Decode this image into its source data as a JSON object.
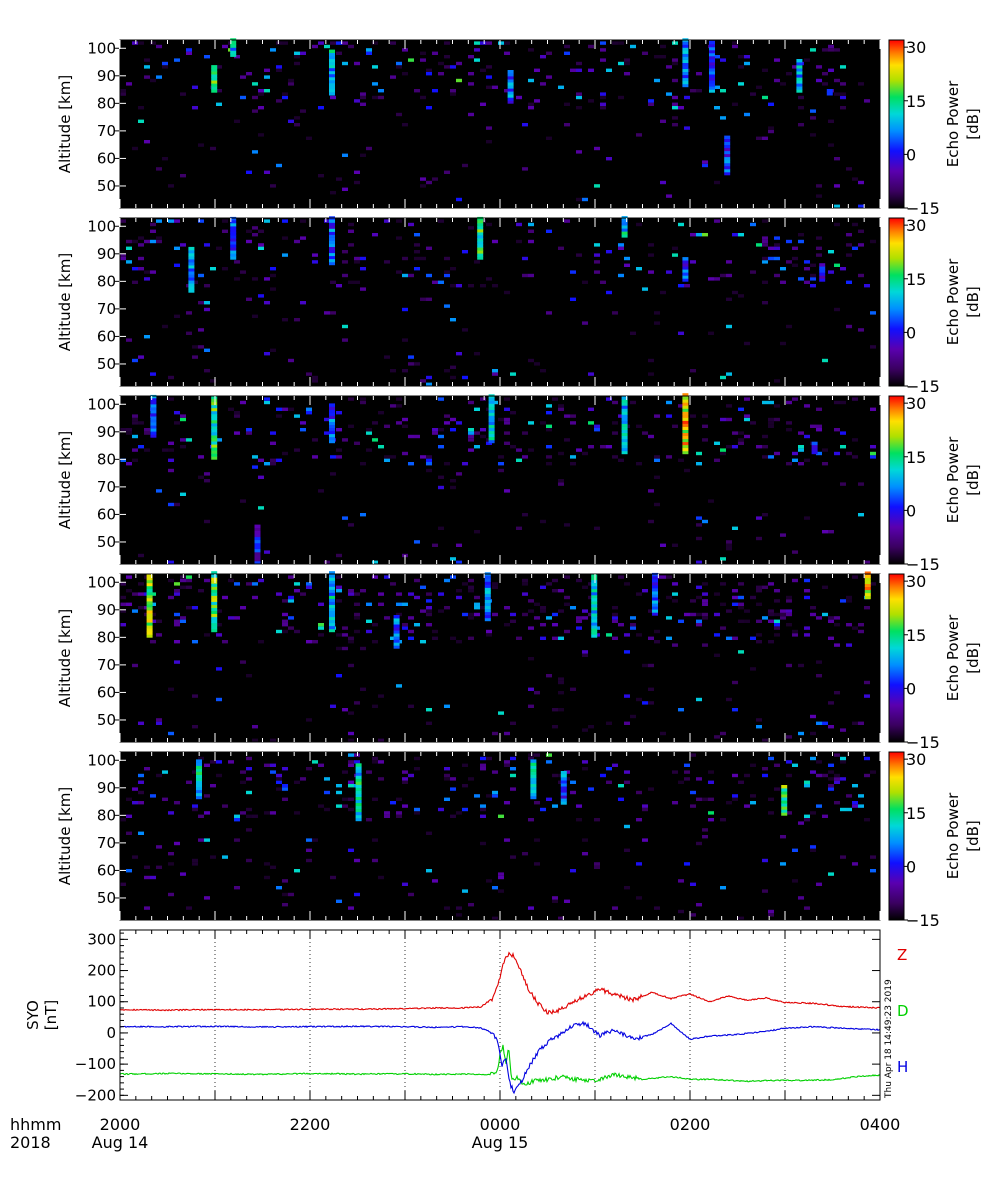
{
  "chart_data": [
    {
      "type": "heatmap",
      "ylabel": "Altitude [km]",
      "yticks": [
        50,
        60,
        70,
        80,
        90,
        100
      ],
      "ylim": [
        42,
        103
      ],
      "colorbar": {
        "label_line1": "Echo Power",
        "label_line2": "[dB]",
        "ticks": [
          "30",
          "15",
          "0",
          "−15"
        ],
        "range": [
          -15,
          32
        ]
      },
      "seed": 11,
      "layers": [
        {
          "min": 79,
          "max": 103,
          "density": 0.09
        },
        {
          "min": 42,
          "max": 79,
          "density": 0.025
        }
      ],
      "hot_columns": [
        {
          "x": 0.12,
          "from": 84,
          "to": 93,
          "power": 15
        },
        {
          "x": 0.145,
          "from": 97,
          "to": 103,
          "power": 10
        },
        {
          "x": 0.275,
          "from": 83,
          "to": 99,
          "power": 10
        },
        {
          "x": 0.51,
          "from": 80,
          "to": 92,
          "power": 5
        },
        {
          "x": 0.74,
          "from": 86,
          "to": 103,
          "power": 8
        },
        {
          "x": 0.775,
          "from": 84,
          "to": 102,
          "power": 5
        },
        {
          "x": 0.795,
          "from": 54,
          "to": 68,
          "power": 3
        },
        {
          "x": 0.89,
          "from": 84,
          "to": 96,
          "power": 10
        },
        {
          "x": 0.93,
          "from": 83,
          "to": 85,
          "power": 0
        }
      ]
    },
    {
      "type": "heatmap",
      "ylabel": "Altitude [km]",
      "yticks": [
        50,
        60,
        70,
        80,
        90,
        100
      ],
      "ylim": [
        42,
        103
      ],
      "colorbar": {
        "label_line1": "Echo Power",
        "label_line2": "[dB]",
        "ticks": [
          "30",
          "15",
          "0",
          "−15"
        ],
        "range": [
          -15,
          32
        ]
      },
      "seed": 23,
      "layers": [
        {
          "min": 78,
          "max": 103,
          "density": 0.08
        },
        {
          "min": 42,
          "max": 78,
          "density": 0.025
        }
      ],
      "hot_columns": [
        {
          "x": 0.09,
          "from": 76,
          "to": 92,
          "power": 8
        },
        {
          "x": 0.145,
          "from": 88,
          "to": 103,
          "power": 5
        },
        {
          "x": 0.275,
          "from": 86,
          "to": 103,
          "power": 5
        },
        {
          "x": 0.47,
          "from": 88,
          "to": 103,
          "power": 15
        },
        {
          "x": 0.66,
          "from": 96,
          "to": 103,
          "power": 12
        },
        {
          "x": 0.74,
          "from": 80,
          "to": 88,
          "power": 3
        },
        {
          "x": 0.92,
          "from": 80,
          "to": 86,
          "power": 0
        }
      ]
    },
    {
      "type": "heatmap",
      "ylabel": "Altitude [km]",
      "yticks": [
        50,
        60,
        70,
        80,
        90,
        100
      ],
      "ylim": [
        42,
        103
      ],
      "colorbar": {
        "label_line1": "Echo Power",
        "label_line2": "[dB]",
        "ticks": [
          "30",
          "15",
          "0",
          "−15"
        ],
        "range": [
          -15,
          32
        ]
      },
      "seed": 37,
      "layers": [
        {
          "min": 79,
          "max": 103,
          "density": 0.1
        },
        {
          "min": 42,
          "max": 79,
          "density": 0.025
        }
      ],
      "hot_columns": [
        {
          "x": 0.04,
          "from": 88,
          "to": 103,
          "power": 5
        },
        {
          "x": 0.12,
          "from": 80,
          "to": 103,
          "power": 15
        },
        {
          "x": 0.177,
          "from": 42,
          "to": 56,
          "power": 0
        },
        {
          "x": 0.275,
          "from": 86,
          "to": 100,
          "power": 5
        },
        {
          "x": 0.485,
          "from": 86,
          "to": 103,
          "power": 10
        },
        {
          "x": 0.66,
          "from": 82,
          "to": 102,
          "power": 8
        },
        {
          "x": 0.74,
          "from": 82,
          "to": 103,
          "power": 25
        },
        {
          "x": 0.91,
          "from": 82,
          "to": 86,
          "power": 0
        }
      ]
    },
    {
      "type": "heatmap",
      "ylabel": "Altitude [km]",
      "yticks": [
        50,
        60,
        70,
        80,
        90,
        100
      ],
      "ylim": [
        42,
        103
      ],
      "colorbar": {
        "label_line1": "Echo Power",
        "label_line2": "[dB]",
        "ticks": [
          "30",
          "15",
          "0",
          "−15"
        ],
        "range": [
          -15,
          32
        ]
      },
      "seed": 53,
      "layers": [
        {
          "min": 78,
          "max": 103,
          "density": 0.13
        },
        {
          "min": 42,
          "max": 78,
          "density": 0.03
        }
      ],
      "hot_columns": [
        {
          "x": 0.035,
          "from": 80,
          "to": 103,
          "power": 20
        },
        {
          "x": 0.12,
          "from": 82,
          "to": 103,
          "power": 18
        },
        {
          "x": 0.275,
          "from": 82,
          "to": 103,
          "power": 10
        },
        {
          "x": 0.36,
          "from": 76,
          "to": 88,
          "power": 5
        },
        {
          "x": 0.48,
          "from": 86,
          "to": 103,
          "power": 8
        },
        {
          "x": 0.62,
          "from": 80,
          "to": 103,
          "power": 10
        },
        {
          "x": 0.7,
          "from": 88,
          "to": 103,
          "power": 5
        },
        {
          "x": 0.98,
          "from": 94,
          "to": 103,
          "power": 25
        }
      ]
    },
    {
      "type": "heatmap",
      "ylabel": "Altitude [km]",
      "yticks": [
        50,
        60,
        70,
        80,
        90,
        100
      ],
      "ylim": [
        42,
        103
      ],
      "colorbar": {
        "label_line1": "Echo Power",
        "label_line2": "[dB]",
        "ticks": [
          "30",
          "15",
          "0",
          "−15"
        ],
        "range": [
          -15,
          32
        ]
      },
      "seed": 71,
      "layers": [
        {
          "min": 78,
          "max": 103,
          "density": 0.1
        },
        {
          "min": 42,
          "max": 78,
          "density": 0.03
        }
      ],
      "hot_columns": [
        {
          "x": 0.1,
          "from": 86,
          "to": 100,
          "power": 12
        },
        {
          "x": 0.31,
          "from": 78,
          "to": 98,
          "power": 12
        },
        {
          "x": 0.54,
          "from": 86,
          "to": 100,
          "power": 10
        },
        {
          "x": 0.58,
          "from": 84,
          "to": 96,
          "power": 5
        },
        {
          "x": 0.87,
          "from": 80,
          "to": 90,
          "power": 18
        }
      ]
    },
    {
      "type": "line",
      "ylabel_line1": "SYO",
      "ylabel_line2": "[nT]",
      "yticks": [
        -200,
        -100,
        0,
        100,
        200,
        300
      ],
      "ylim": [
        -215,
        330
      ],
      "xlim": [
        0,
        8
      ],
      "timestamp": "Thu Apr 18 14:49:23 2019",
      "series": [
        {
          "name": "Z",
          "color": "#e00000",
          "x": [
            0,
            0.5,
            1,
            1.5,
            2,
            2.5,
            3,
            3.3,
            3.6,
            3.8,
            3.92,
            4.0,
            4.05,
            4.1,
            4.15,
            4.22,
            4.3,
            4.4,
            4.5,
            4.6,
            4.75,
            4.9,
            5.05,
            5.2,
            5.4,
            5.6,
            5.8,
            6.0,
            6.2,
            6.4,
            6.6,
            6.8,
            7.0,
            7.3,
            7.6,
            8.0
          ],
          "y": [
            75,
            73,
            75,
            74,
            76,
            76,
            78,
            80,
            80,
            84,
            110,
            180,
            240,
            252,
            245,
            200,
            140,
            95,
            65,
            70,
            95,
            120,
            140,
            125,
            105,
            130,
            110,
            125,
            100,
            118,
            105,
            112,
            98,
            95,
            85,
            80
          ]
        },
        {
          "name": "D",
          "color": "#00d000",
          "x": [
            0,
            0.5,
            1,
            1.5,
            2,
            2.5,
            3,
            3.3,
            3.6,
            3.9,
            3.97,
            4.0,
            4.03,
            4.06,
            4.09,
            4.12,
            4.18,
            4.25,
            4.35,
            4.5,
            4.65,
            4.8,
            5.0,
            5.2,
            5.5,
            5.8,
            6.0,
            6.3,
            6.6,
            6.9,
            7.2,
            7.5,
            7.8,
            8.0
          ],
          "y": [
            -132,
            -130,
            -131,
            -133,
            -130,
            -132,
            -131,
            -133,
            -132,
            -133,
            -120,
            -70,
            -40,
            -100,
            -45,
            -150,
            -140,
            -165,
            -155,
            -150,
            -140,
            -150,
            -155,
            -135,
            -148,
            -140,
            -148,
            -150,
            -155,
            -152,
            -152,
            -150,
            -138,
            -135
          ]
        },
        {
          "name": "H",
          "color": "#0000e0",
          "x": [
            0,
            0.5,
            1,
            1.5,
            2,
            2.5,
            3,
            3.3,
            3.6,
            3.8,
            3.92,
            3.98,
            4.02,
            4.06,
            4.1,
            4.15,
            4.22,
            4.3,
            4.4,
            4.5,
            4.6,
            4.75,
            4.9,
            5.05,
            5.2,
            5.4,
            5.6,
            5.8,
            6.0,
            6.2,
            6.5,
            6.8,
            7.0,
            7.3,
            7.6,
            8.0
          ],
          "y": [
            20,
            20,
            21,
            19,
            20,
            21,
            20,
            18,
            20,
            16,
            0,
            -30,
            -110,
            -80,
            -160,
            -190,
            -160,
            -110,
            -60,
            -30,
            -10,
            20,
            30,
            -10,
            10,
            -20,
            -5,
            30,
            -20,
            -10,
            -5,
            5,
            15,
            20,
            15,
            10
          ]
        }
      ]
    }
  ],
  "xaxis": {
    "xlim": [
      0,
      8
    ],
    "row_label_1": "hhmm",
    "row_label_2": "2018",
    "ticks": [
      {
        "x": 0,
        "time": "2000",
        "date": "Aug 14"
      },
      {
        "x": 2,
        "time": "2200",
        "date": ""
      },
      {
        "x": 4,
        "time": "0000",
        "date": "Aug 15"
      },
      {
        "x": 6,
        "time": "0200",
        "date": ""
      },
      {
        "x": 8,
        "time": "0400",
        "date": ""
      }
    ]
  }
}
